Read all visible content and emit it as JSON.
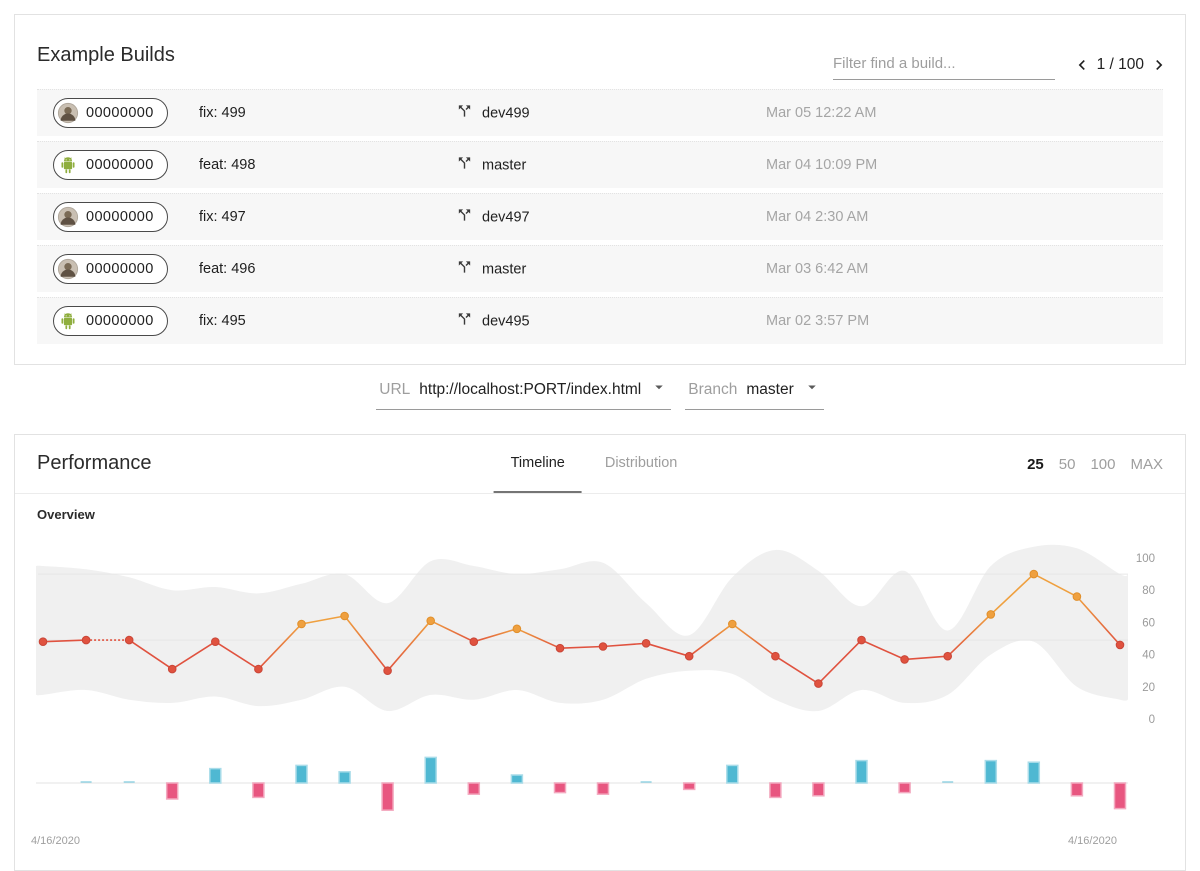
{
  "builds_panel": {
    "title": "Example Builds",
    "filter_placeholder": "Filter find a build...",
    "pagination": {
      "current": "1",
      "separator": "/",
      "total": "100"
    },
    "rows": [
      {
        "avatar": "person",
        "hash": "00000000",
        "commit": "fix: 499",
        "branch": "dev499",
        "time": "Mar 05 12:22 AM"
      },
      {
        "avatar": "android",
        "hash": "00000000",
        "commit": "feat: 498",
        "branch": "master",
        "time": "Mar 04 10:09 PM"
      },
      {
        "avatar": "person",
        "hash": "00000000",
        "commit": "fix: 497",
        "branch": "dev497",
        "time": "Mar 04 2:30 AM"
      },
      {
        "avatar": "person",
        "hash": "00000000",
        "commit": "feat: 496",
        "branch": "master",
        "time": "Mar 03 6:42 AM"
      },
      {
        "avatar": "android",
        "hash": "00000000",
        "commit": "fix: 495",
        "branch": "dev495",
        "time": "Mar 02 3:57 PM"
      }
    ]
  },
  "controls": {
    "url_label": "URL",
    "url_value": "http://localhost:PORT/index.html",
    "branch_label": "Branch",
    "branch_value": "master"
  },
  "performance_panel": {
    "title": "Performance",
    "tabs": [
      {
        "label": "Timeline",
        "active": true
      },
      {
        "label": "Distribution",
        "active": false
      }
    ],
    "range_options": [
      {
        "label": "25",
        "active": true
      },
      {
        "label": "50",
        "active": false
      },
      {
        "label": "100",
        "active": false
      },
      {
        "label": "MAX",
        "active": false
      }
    ],
    "section_label": "Overview"
  },
  "icons": {
    "branch": "call-split-icon",
    "pager_prev": "chevron-left-icon",
    "pager_next": "chevron-right-icon",
    "select_caret": "caret-down-icon",
    "avatars": [
      "person-avatar",
      "android-avatar"
    ]
  },
  "chart_data": {
    "type": "line",
    "title": "Overview",
    "y_axis": {
      "side": "right",
      "range": [
        0,
        100
      ],
      "ticks": [
        0,
        20,
        40,
        60,
        80,
        100
      ]
    },
    "gridline_values": [
      90,
      49
    ],
    "x_range_labels": [
      "4/16/2020",
      "4/16/2020"
    ],
    "num_builds": 26,
    "line": {
      "name": "overview-score",
      "values": [
        48,
        49,
        49,
        31,
        48,
        31,
        59,
        64,
        30,
        61,
        48,
        56,
        44,
        45,
        47,
        39,
        59,
        39,
        22,
        49,
        37,
        39,
        65,
        90,
        76,
        46
      ],
      "dashed_segments": [
        1
      ],
      "colors": {
        "high": "#EFA03F",
        "high_stroke": "#E08F2B",
        "low": "#E0523F",
        "low_stroke": "#C94638",
        "high_threshold": 55
      }
    },
    "band": {
      "name": "min-max-envelope",
      "color": "#F0F0F0",
      "upper": [
        95,
        93,
        88,
        80,
        82,
        78,
        84,
        90,
        72,
        98,
        95,
        90,
        93,
        97,
        72,
        52,
        88,
        105,
        92,
        70,
        92,
        55,
        95,
        107,
        106,
        90
      ],
      "lower": [
        15,
        18,
        12,
        10,
        14,
        8,
        12,
        20,
        5,
        15,
        12,
        18,
        10,
        12,
        25,
        30,
        28,
        12,
        5,
        18,
        10,
        15,
        40,
        48,
        20,
        12
      ]
    },
    "bars": {
      "name": "score-delta",
      "values": [
        0,
        1,
        1,
        -10,
        9,
        -9,
        11,
        7,
        -17,
        16,
        -7,
        5,
        -6,
        -7,
        1,
        -4,
        11,
        -9,
        -8,
        14,
        -6,
        1,
        14,
        13,
        -8,
        -16
      ],
      "positive_color": "#4FB8D2",
      "positive_stroke": "#A9DCE9",
      "negative_color": "#E85680",
      "negative_stroke": "#F3A9BF"
    }
  }
}
